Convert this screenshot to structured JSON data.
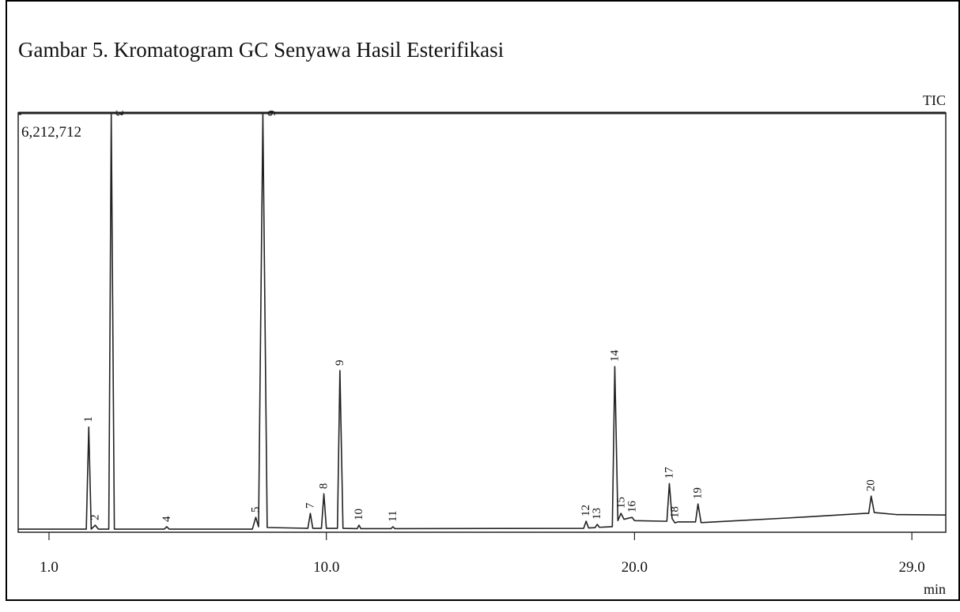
{
  "chart_data": {
    "type": "line",
    "title": "Gambar 5. Kromatogram GC Senyawa Hasil Esterifikasi",
    "signal_label": "TIC",
    "x_label": "min",
    "xlim": [
      0,
      30.1
    ],
    "ylim": [
      0,
      6212712
    ],
    "xticks": [
      {
        "value": 1,
        "label": "1.0"
      },
      {
        "value": 10,
        "label": "10.0"
      },
      {
        "value": 20,
        "label": "20.0"
      },
      {
        "value": 29,
        "label": "29.0"
      }
    ],
    "yticks": [
      {
        "value": 6212712,
        "label": "6,212,712"
      }
    ],
    "color": "#222222",
    "x": [
      0.0,
      2.21,
      2.29,
      2.37,
      2.5,
      2.6,
      2.94,
      3.02,
      3.12,
      4.74,
      4.82,
      4.9,
      7.6,
      7.71,
      7.8,
      7.94,
      8.08,
      9.4,
      9.48,
      9.56,
      9.84,
      9.92,
      10.0,
      10.36,
      10.44,
      10.54,
      11.0,
      11.06,
      11.12,
      12.1,
      12.16,
      12.22,
      18.35,
      18.43,
      18.51,
      18.72,
      18.79,
      18.86,
      19.28,
      19.36,
      19.46,
      19.56,
      19.66,
      19.92,
      20.0,
      21.05,
      21.13,
      21.22,
      21.31,
      21.4,
      21.98,
      22.06,
      22.16,
      23.0,
      25.0,
      27.5,
      27.6,
      27.68,
      27.78,
      28.5,
      30.1
    ],
    "values": [
      23000,
      23000,
      1547000,
      23000,
      82000,
      23000,
      23000,
      6212712,
      23000,
      23000,
      59000,
      23000,
      23000,
      199000,
      59000,
      6212712,
      47000,
      35000,
      258000,
      35000,
      35000,
      551000,
      35000,
      35000,
      2391000,
      35000,
      30000,
      82000,
      30000,
      30000,
      59000,
      30000,
      35000,
      141000,
      40000,
      45000,
      94000,
      50000,
      60000,
      2450000,
      150000,
      258000,
      170000,
      199000,
      150000,
      140000,
      703000,
      180000,
      117000,
      130000,
      130000,
      399000,
      120000,
      141000,
      190000,
      258000,
      258000,
      516000,
      270000,
      240000,
      234000
    ],
    "peaks": [
      {
        "label": "1",
        "x": 2.29,
        "y": 1547000
      },
      {
        "label": "2",
        "x": 2.5,
        "y": 82000
      },
      {
        "label": "3",
        "x": 3.02,
        "y": 6212712
      },
      {
        "label": "4",
        "x": 4.82,
        "y": 59000
      },
      {
        "label": "5",
        "x": 7.71,
        "y": 199000
      },
      {
        "label": "6",
        "x": 7.94,
        "y": 6212712
      },
      {
        "label": "7",
        "x": 9.48,
        "y": 258000
      },
      {
        "label": "8",
        "x": 9.92,
        "y": 551000
      },
      {
        "label": "9",
        "x": 10.44,
        "y": 2391000
      },
      {
        "label": "10",
        "x": 11.06,
        "y": 82000
      },
      {
        "label": "11",
        "x": 12.16,
        "y": 59000
      },
      {
        "label": "12",
        "x": 18.43,
        "y": 141000
      },
      {
        "label": "13",
        "x": 18.79,
        "y": 94000
      },
      {
        "label": "14",
        "x": 19.36,
        "y": 2450000
      },
      {
        "label": "15",
        "x": 19.56,
        "y": 258000
      },
      {
        "label": "16",
        "x": 19.92,
        "y": 199000
      },
      {
        "label": "17",
        "x": 21.13,
        "y": 703000
      },
      {
        "label": "18",
        "x": 21.31,
        "y": 117000
      },
      {
        "label": "19",
        "x": 22.06,
        "y": 399000
      },
      {
        "label": "20",
        "x": 27.68,
        "y": 516000
      }
    ]
  }
}
